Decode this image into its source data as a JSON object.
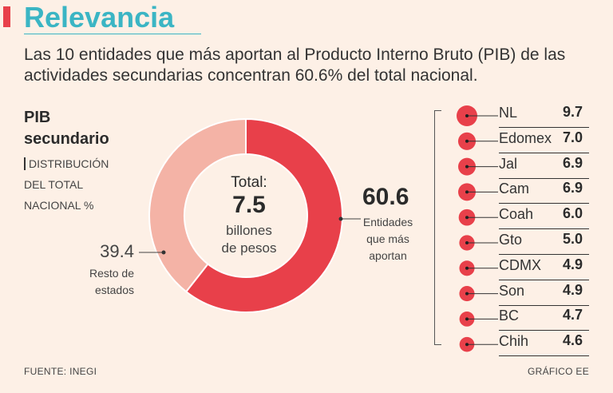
{
  "header": {
    "title": "Relevancia",
    "subtitle": "Las 10 entidades que más aportan al Producto Interno Bruto (PIB) de las actividades secundarias concentran 60.6% del total nacional."
  },
  "panel": {
    "heading_line1": "PIB",
    "heading_line2": "secundario",
    "sub_line1": "DISTRIBUCIÓN",
    "sub_line2": "DEL TOTAL",
    "sub_line3": "NACIONAL %"
  },
  "chart_data": [
    {
      "type": "pie",
      "title": "PIB secundario | DISTRIBUCIÓN DEL TOTAL NACIONAL %",
      "categories": [
        "Entidades que más aportan",
        "Resto de estados"
      ],
      "values": [
        60.6,
        39.4
      ],
      "center": {
        "label": "Total:",
        "value": "7.5",
        "unit_line1": "billones",
        "unit_line2": "de pesos"
      },
      "labels": {
        "top": {
          "value": "60.6",
          "line1": "Entidades",
          "line2": "que más",
          "line3": "aportan"
        },
        "rest": {
          "value": "39.4",
          "line1": "Resto de",
          "line2": "estados"
        }
      }
    },
    {
      "type": "bar",
      "title": "Entidades que más aportan",
      "categories": [
        "NL",
        "Edomex",
        "Jal",
        "Cam",
        "Coah",
        "Gto",
        "CDMX",
        "Son",
        "BC",
        "Chih"
      ],
      "values": [
        9.7,
        7.0,
        6.9,
        6.9,
        6.0,
        5.0,
        4.9,
        4.9,
        4.7,
        4.6
      ],
      "value_labels": [
        "9.7",
        "7.0",
        "6.9",
        "6.9",
        "6.0",
        "5.0",
        "4.9",
        "4.9",
        "4.7",
        "4.6"
      ]
    }
  ],
  "colors": {
    "accent": "#e8404a",
    "light": "#f4b3a6",
    "title": "#3bb5c4",
    "background": "#fdf0e6"
  },
  "footer": {
    "source": "FUENTE: INEGI",
    "credit": "GRÁFICO EE"
  }
}
